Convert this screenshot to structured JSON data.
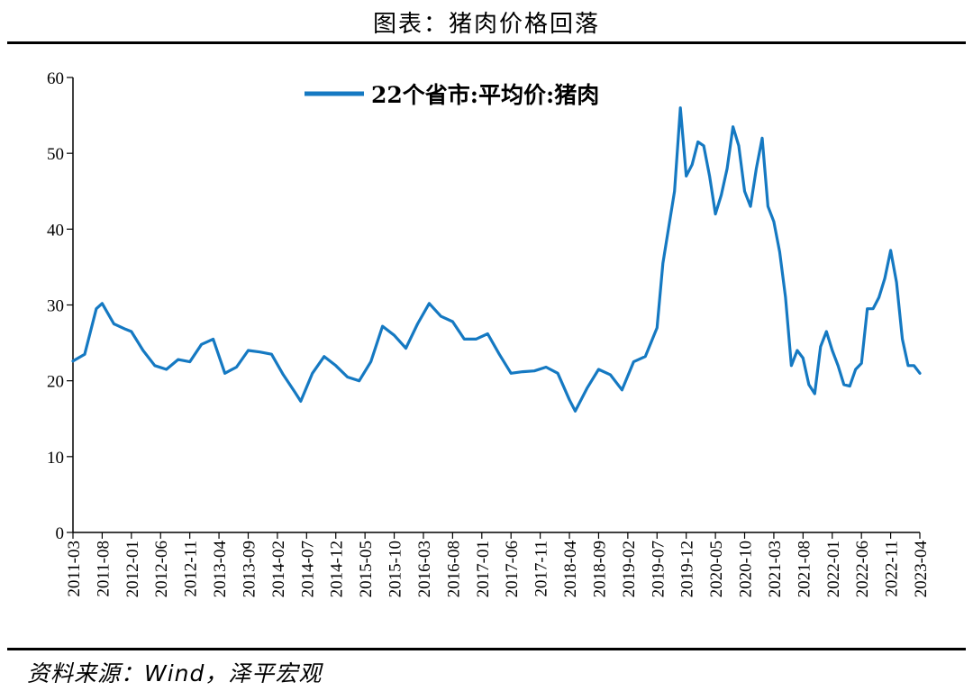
{
  "header": {
    "title": "图表：猪肉价格回落"
  },
  "footer": {
    "source": "资料来源：Wind，泽平宏观"
  },
  "colors": {
    "series": "#1579C2"
  },
  "chart_data": {
    "type": "line",
    "title": "图表：猪肉价格回落",
    "xlabel": "",
    "ylabel": "",
    "ylim": [
      0,
      60
    ],
    "yticks": [
      0,
      10,
      20,
      30,
      40,
      50,
      60
    ],
    "xlim": [
      "2011-03",
      "2023-04"
    ],
    "xticks": [
      "2011-03",
      "2011-08",
      "2012-01",
      "2012-06",
      "2012-11",
      "2013-04",
      "2013-09",
      "2014-02",
      "2014-07",
      "2014-12",
      "2015-05",
      "2015-10",
      "2016-03",
      "2016-08",
      "2017-01",
      "2017-06",
      "2017-11",
      "2018-04",
      "2018-09",
      "2019-02",
      "2019-07",
      "2019-12",
      "2020-05",
      "2020-10",
      "2021-03",
      "2021-08",
      "2022-01",
      "2022-06",
      "2022-11",
      "2023-04"
    ],
    "grid": false,
    "legend": "top-center",
    "series": [
      {
        "name": "22个省市:平均价:猪肉",
        "x": [
          "2011-03",
          "2011-05",
          "2011-07",
          "2011-08",
          "2011-10",
          "2011-12",
          "2012-01",
          "2012-03",
          "2012-05",
          "2012-07",
          "2012-09",
          "2012-11",
          "2013-01",
          "2013-03",
          "2013-05",
          "2013-07",
          "2013-09",
          "2013-11",
          "2014-01",
          "2014-03",
          "2014-05",
          "2014-06",
          "2014-08",
          "2014-10",
          "2014-12",
          "2015-02",
          "2015-04",
          "2015-06",
          "2015-08",
          "2015-10",
          "2015-12",
          "2016-02",
          "2016-04",
          "2016-06",
          "2016-08",
          "2016-10",
          "2016-12",
          "2017-02",
          "2017-04",
          "2017-06",
          "2017-08",
          "2017-10",
          "2017-12",
          "2018-02",
          "2018-04",
          "2018-05",
          "2018-07",
          "2018-09",
          "2018-11",
          "2019-01",
          "2019-03",
          "2019-05",
          "2019-07",
          "2019-08",
          "2019-10",
          "2019-11",
          "2019-12",
          "2020-01",
          "2020-02",
          "2020-03",
          "2020-04",
          "2020-05",
          "2020-06",
          "2020-07",
          "2020-08",
          "2020-09",
          "2020-10",
          "2020-11",
          "2020-12",
          "2021-01",
          "2021-02",
          "2021-03",
          "2021-04",
          "2021-05",
          "2021-06",
          "2021-07",
          "2021-08",
          "2021-09",
          "2021-10",
          "2021-11",
          "2021-12",
          "2022-01",
          "2022-02",
          "2022-03",
          "2022-04",
          "2022-05",
          "2022-06",
          "2022-07",
          "2022-08",
          "2022-09",
          "2022-10",
          "2022-11",
          "2022-12",
          "2023-01",
          "2023-02",
          "2023-03",
          "2023-04"
        ],
        "values": [
          22.6,
          23.5,
          29.5,
          30.2,
          27.5,
          26.8,
          26.5,
          24.0,
          22.0,
          21.5,
          22.8,
          22.5,
          24.8,
          25.5,
          21.0,
          21.8,
          24.0,
          23.8,
          23.5,
          20.8,
          18.5,
          17.3,
          21.0,
          23.2,
          22.0,
          20.5,
          20.0,
          22.5,
          27.2,
          26.0,
          24.3,
          27.5,
          30.2,
          28.5,
          27.8,
          25.5,
          25.5,
          26.2,
          23.5,
          21.0,
          21.2,
          21.3,
          21.8,
          21.0,
          17.5,
          16.0,
          19.0,
          21.5,
          20.8,
          18.8,
          22.5,
          23.2,
          27.0,
          35.5,
          45.0,
          56.0,
          47.0,
          48.5,
          51.5,
          51.0,
          47.0,
          42.0,
          44.5,
          48.0,
          53.5,
          51.0,
          45.0,
          43.0,
          48.0,
          52.0,
          43.0,
          41.0,
          37.0,
          31.0,
          22.0,
          24.0,
          23.0,
          19.5,
          18.3,
          24.5,
          26.5,
          24.0,
          22.0,
          19.5,
          19.3,
          21.5,
          22.3,
          29.5,
          29.5,
          31.0,
          33.5,
          37.2,
          33.0,
          25.5,
          22.0,
          22.0,
          21.0
        ]
      }
    ]
  }
}
